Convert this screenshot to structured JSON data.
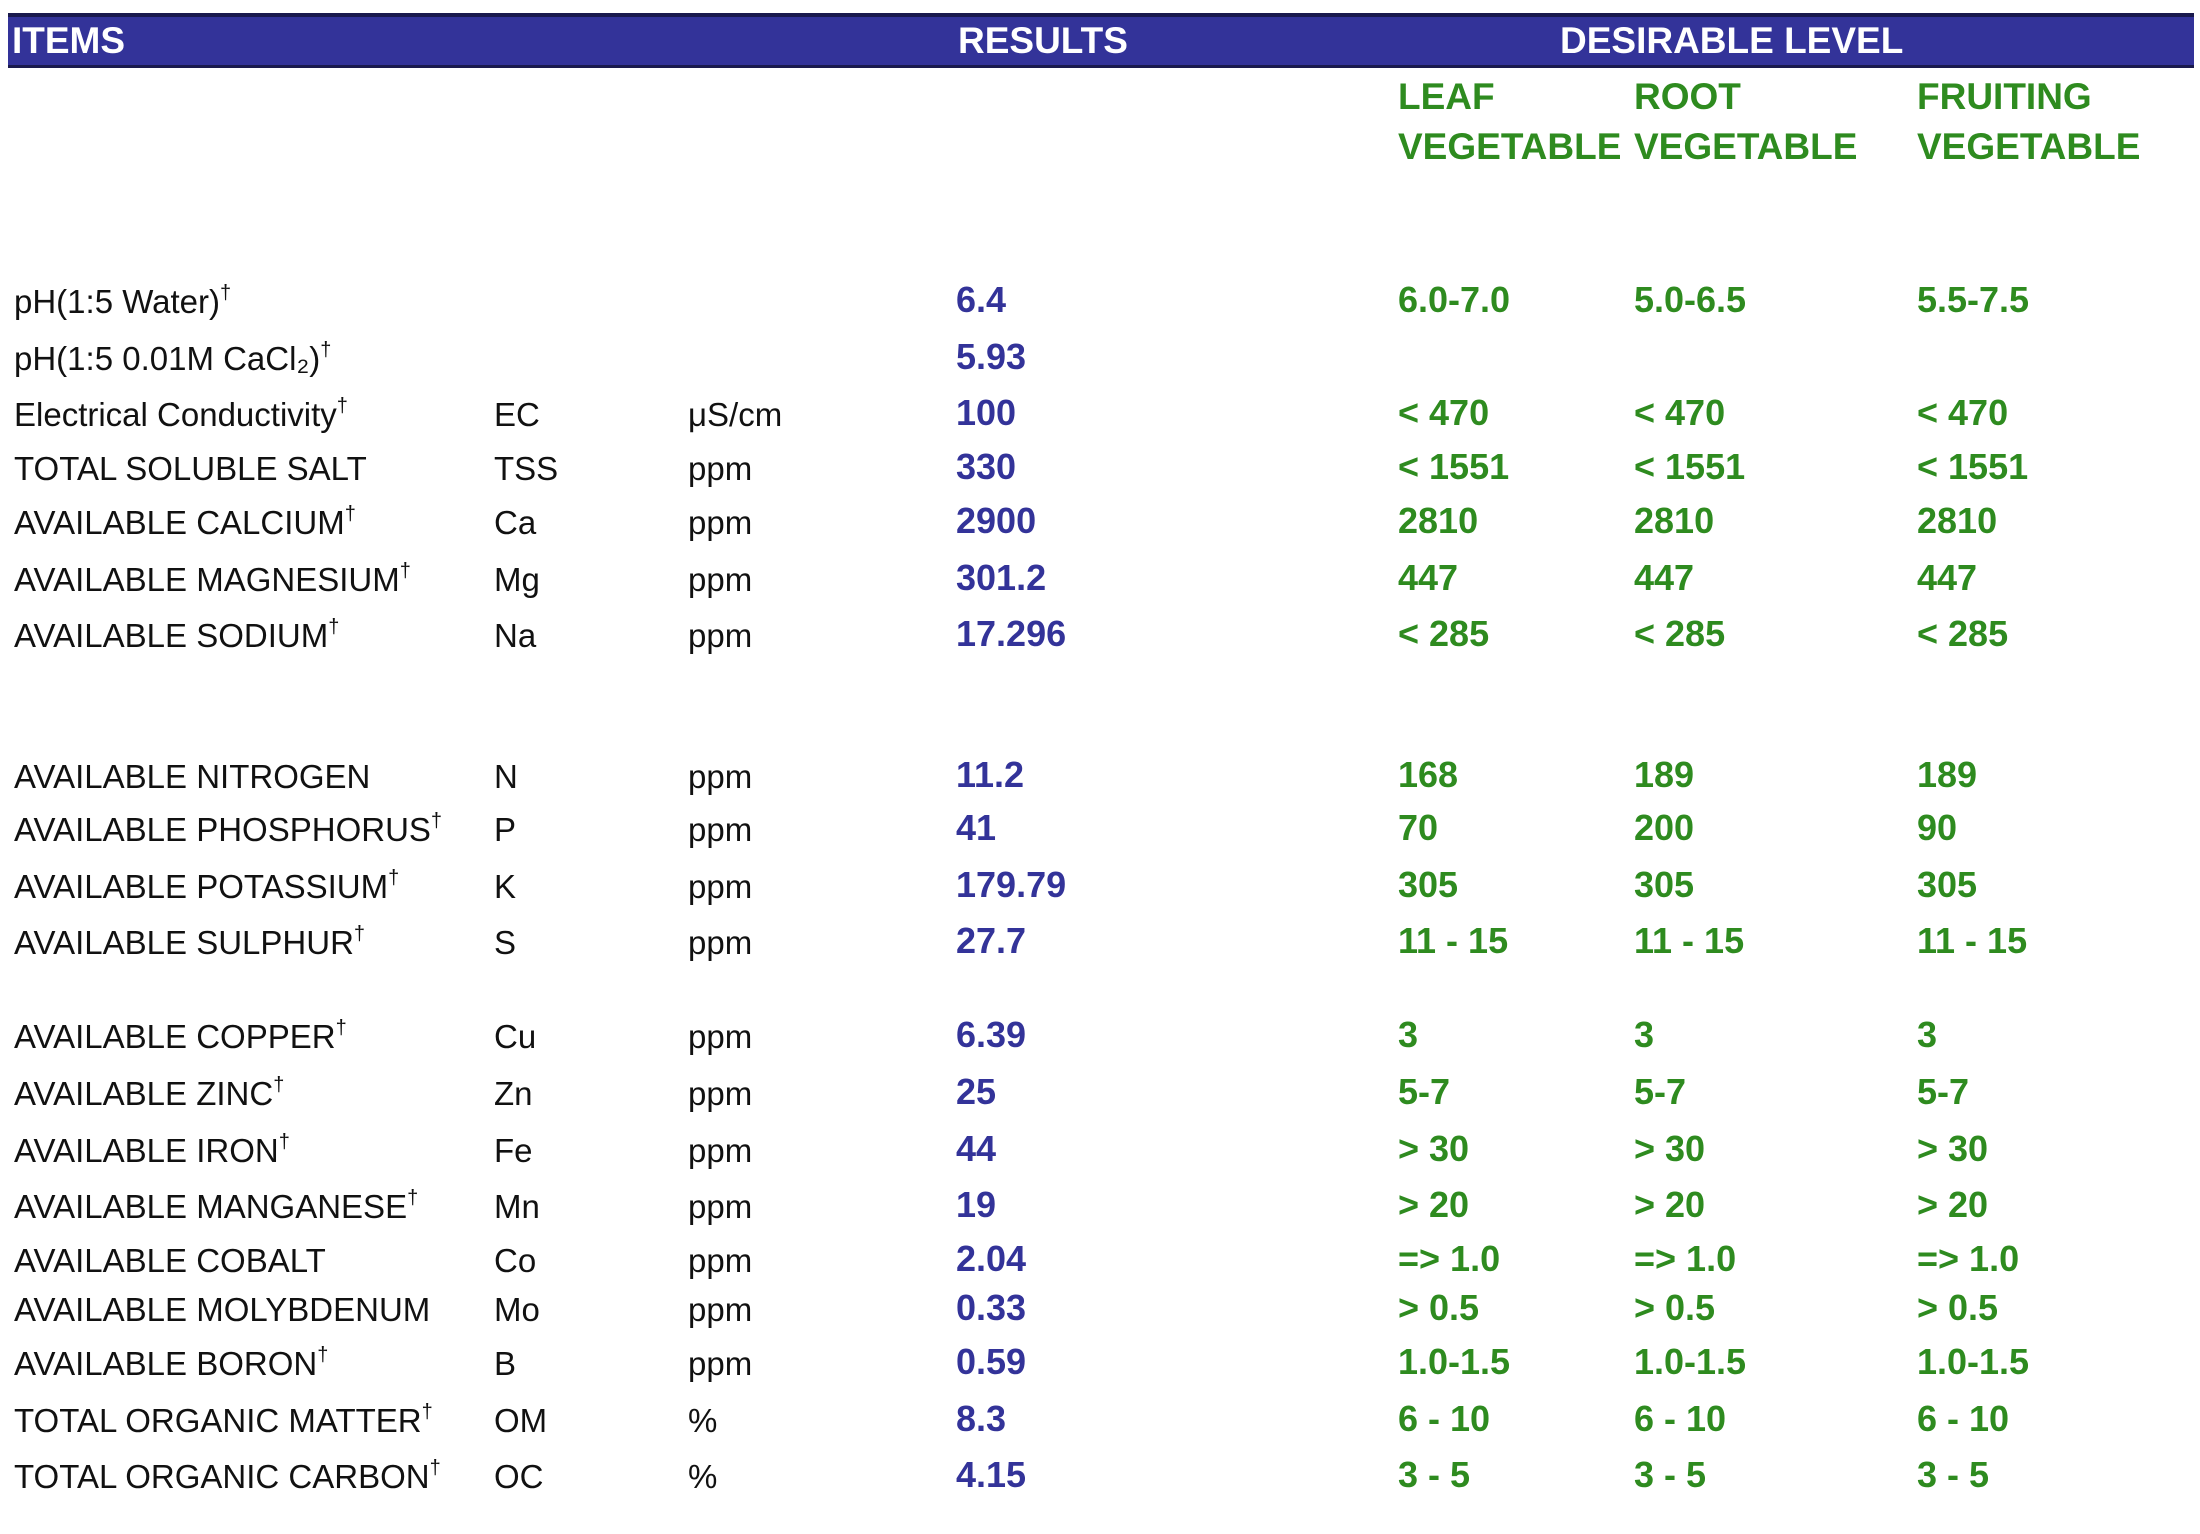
{
  "header": {
    "items": "ITEMS",
    "results": "RESULTS",
    "desirable_level": "DESIRABLE LEVEL"
  },
  "levels": {
    "leaf": [
      "LEAF",
      "VEGETABLE"
    ],
    "root": [
      "ROOT",
      "VEGETABLE"
    ],
    "fruiting": [
      "FRUITING",
      "VEGETABLE"
    ]
  },
  "dagger": "†",
  "colors": {
    "header_bg": "#333399",
    "results_text": "#333399",
    "level_text": "#2e8b1f"
  },
  "rows": [
    {
      "item": "pH(1:5 Water)",
      "dagger": true,
      "symbol": "",
      "unit": "",
      "result": "6.4",
      "leaf": "6.0-7.0",
      "root": "5.0-6.5",
      "fruiting": "5.5-7.5"
    },
    {
      "item": "pH(1:5 0.01M CaCl₂)",
      "dagger": true,
      "symbol": "",
      "unit": "",
      "result": "5.93",
      "leaf": "",
      "root": "",
      "fruiting": ""
    },
    {
      "item": "Electrical Conductivity",
      "dagger": true,
      "symbol": "EC",
      "unit": "μS/cm",
      "result": "100",
      "leaf": "< 470",
      "root": "< 470",
      "fruiting": "< 470"
    },
    {
      "item": "TOTAL SOLUBLE SALT",
      "dagger": false,
      "symbol": "TSS",
      "unit": "ppm",
      "result": "330",
      "leaf": "< 1551",
      "root": "< 1551",
      "fruiting": "< 1551"
    },
    {
      "item": "AVAILABLE CALCIUM",
      "dagger": true,
      "symbol": "Ca",
      "unit": "ppm",
      "result": "2900",
      "leaf": "2810",
      "root": "2810",
      "fruiting": "2810"
    },
    {
      "item": "AVAILABLE MAGNESIUM",
      "dagger": true,
      "symbol": "Mg",
      "unit": "ppm",
      "result": "301.2",
      "leaf": "447",
      "root": "447",
      "fruiting": "447"
    },
    {
      "item": "AVAILABLE SODIUM",
      "dagger": true,
      "symbol": "Na",
      "unit": "ppm",
      "result": "17.296",
      "leaf": "< 285",
      "root": "< 285",
      "fruiting": "< 285"
    },
    {
      "item": "AVAILABLE NITROGEN",
      "dagger": false,
      "symbol": "N",
      "unit": "ppm",
      "result": "11.2",
      "leaf": "168",
      "root": "189",
      "fruiting": "189"
    },
    {
      "item": "AVAILABLE PHOSPHORUS",
      "dagger": true,
      "symbol": "P",
      "unit": "ppm",
      "result": "41",
      "leaf": "70",
      "root": "200",
      "fruiting": "90"
    },
    {
      "item": "AVAILABLE POTASSIUM",
      "dagger": true,
      "symbol": "K",
      "unit": "ppm",
      "result": "179.79",
      "leaf": "305",
      "root": "305",
      "fruiting": "305"
    },
    {
      "item": "AVAILABLE SULPHUR",
      "dagger": true,
      "symbol": "S",
      "unit": "ppm",
      "result": "27.7",
      "leaf": "11 - 15",
      "root": "11 - 15",
      "fruiting": "11 - 15"
    },
    {
      "item": "AVAILABLE COPPER",
      "dagger": true,
      "symbol": "Cu",
      "unit": "ppm",
      "result": "6.39",
      "leaf": "3",
      "root": "3",
      "fruiting": "3"
    },
    {
      "item": "AVAILABLE ZINC",
      "dagger": true,
      "symbol": "Zn",
      "unit": "ppm",
      "result": "25",
      "leaf": "5-7",
      "root": "5-7",
      "fruiting": "5-7"
    },
    {
      "item": "AVAILABLE IRON",
      "dagger": true,
      "symbol": "Fe",
      "unit": "ppm",
      "result": "44",
      "leaf": "> 30",
      "root": "> 30",
      "fruiting": "> 30"
    },
    {
      "item": "AVAILABLE MANGANESE",
      "dagger": true,
      "symbol": "Mn",
      "unit": "ppm",
      "result": "19",
      "leaf": "> 20",
      "root": "> 20",
      "fruiting": "> 20"
    },
    {
      "item": "AVAILABLE COBALT",
      "dagger": false,
      "symbol": "Co",
      "unit": "ppm",
      "result": "2.04",
      "leaf": "=> 1.0",
      "root": "=> 1.0",
      "fruiting": "=> 1.0"
    },
    {
      "item": "AVAILABLE MOLYBDENUM",
      "dagger": false,
      "symbol": "Mo",
      "unit": "ppm",
      "result": "0.33",
      "leaf": "> 0.5",
      "root": "> 0.5",
      "fruiting": "> 0.5"
    },
    {
      "item": "AVAILABLE BORON",
      "dagger": true,
      "symbol": "B",
      "unit": "ppm",
      "result": "0.59",
      "leaf": "1.0-1.5",
      "root": "1.0-1.5",
      "fruiting": "1.0-1.5"
    },
    {
      "item": "TOTAL ORGANIC MATTER",
      "dagger": true,
      "symbol": "OM",
      "unit": "%",
      "result": "8.3",
      "leaf": "6 - 10",
      "root": "6 - 10",
      "fruiting": "6 - 10"
    },
    {
      "item": "TOTAL ORGANIC CARBON",
      "dagger": true,
      "symbol": "OC",
      "unit": "%",
      "result": "4.15",
      "leaf": "3 - 5",
      "root": "3 - 5",
      "fruiting": "3 - 5"
    }
  ]
}
